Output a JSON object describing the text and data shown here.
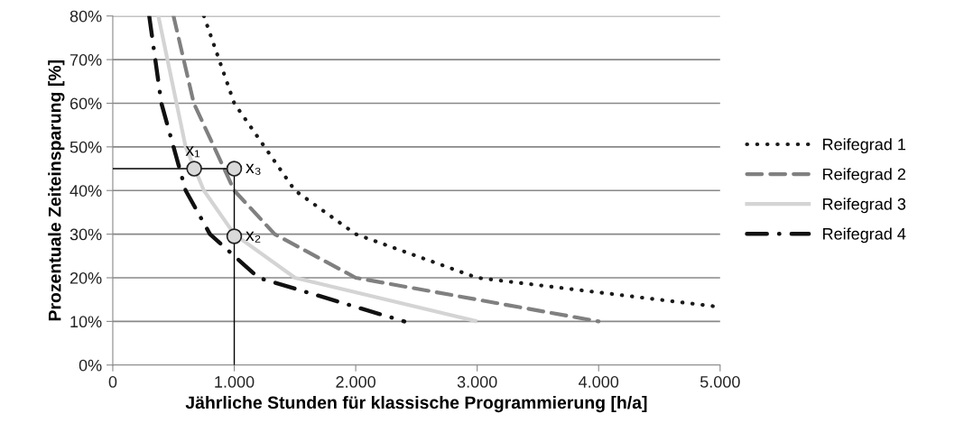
{
  "chart_data": {
    "type": "line",
    "xlabel": "Jährliche Stunden für klassische Programmierung [h/a]",
    "ylabel": "Prozentuale Zeiteinsparung [%]",
    "xlim": [
      0,
      5000
    ],
    "xticks": [
      0,
      {
        "value": 1000,
        "label": "1.000"
      },
      {
        "value": 2000,
        "label": "2.000"
      },
      {
        "value": 3000,
        "label": "3.000"
      },
      {
        "value": 4000,
        "label": "4.000"
      },
      {
        "value": 5000,
        "label": "5.000"
      }
    ],
    "ylim": [
      0,
      80
    ],
    "yticks": [
      {
        "value": 0,
        "label": "0%"
      },
      {
        "value": 10,
        "label": "10%"
      },
      {
        "value": 20,
        "label": "20%"
      },
      {
        "value": 30,
        "label": "30%"
      },
      {
        "value": 40,
        "label": "40%"
      },
      {
        "value": 50,
        "label": "50%"
      },
      {
        "value": 60,
        "label": "60%"
      },
      {
        "value": 70,
        "label": "70%"
      },
      {
        "value": 80,
        "label": "80%"
      }
    ],
    "grid": "y",
    "legend": "right",
    "marker": "none",
    "series": [
      {
        "name": "Reifegrad 1",
        "color": "#1a1a1a",
        "line_style": "dotted",
        "x": [
          750,
          1000,
          1500,
          2000,
          3000,
          5000
        ],
        "values": [
          80,
          60,
          40,
          30,
          20,
          13.3
        ]
      },
      {
        "name": "Reifegrad 2",
        "color": "#808080",
        "line_style": "dashed",
        "x": [
          500,
          667,
          1000,
          1333,
          2000,
          4000
        ],
        "values": [
          80,
          60,
          40,
          30,
          20,
          10
        ]
      },
      {
        "name": "Reifegrad 3",
        "color": "#d4d4d4",
        "line_style": "solid",
        "x": [
          375,
          600,
          750,
          1000,
          1500,
          3000
        ],
        "values": [
          80,
          50,
          40,
          30,
          20,
          10
        ]
      },
      {
        "name": "Reifegrad 4",
        "color": "#111111",
        "line_style": "dashdot",
        "x": [
          300,
          400,
          600,
          800,
          1200,
          2400
        ],
        "values": [
          80,
          60,
          40,
          30,
          20,
          10
        ]
      },
      {
        "color": "#000000",
        "line_style": "solid",
        "x": [
          0,
          1000,
          1000
        ],
        "values": [
          45,
          45,
          0
        ]
      },
      {
        "type": "scatter",
        "color": "#d9d9d9",
        "marker": "circle",
        "x": [
          670,
          1000,
          1000
        ],
        "values": [
          45,
          45,
          29.5
        ]
      }
    ],
    "annotations": [
      "x₁",
      "x₃",
      "x₂"
    ]
  }
}
